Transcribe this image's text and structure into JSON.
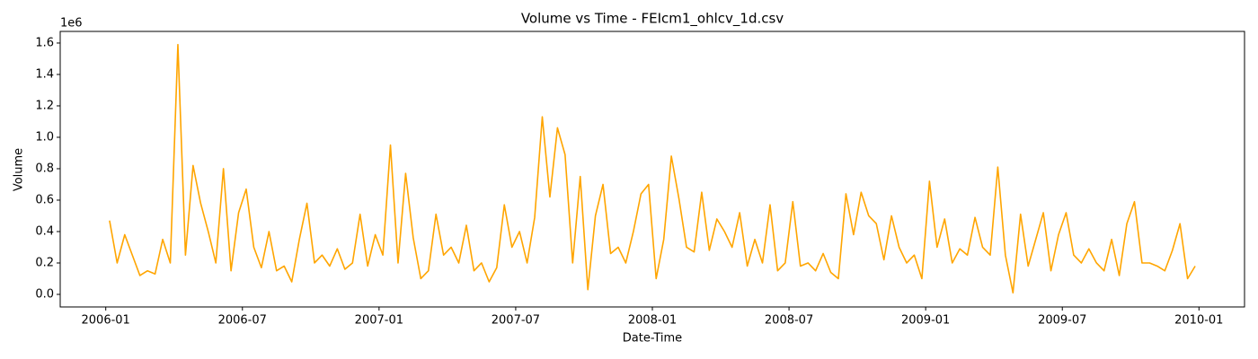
{
  "chart_data": {
    "type": "line",
    "title": "Volume vs Time - FEIcm1_ohlcv_1d.csv",
    "x_label": "Date-Time",
    "y_label": "Volume",
    "y_offset_label": "1e6",
    "x": [
      "2006-01",
      "2006-01",
      "2006-01",
      "2006-02",
      "2006-02",
      "2006-02",
      "2006-03",
      "2006-03",
      "2006-03",
      "2006-04",
      "2006-04",
      "2006-04",
      "2006-05",
      "2006-05",
      "2006-05",
      "2006-06",
      "2006-06",
      "2006-06",
      "2006-07",
      "2006-07",
      "2006-07",
      "2006-08",
      "2006-08",
      "2006-08",
      "2006-09",
      "2006-09",
      "2006-09",
      "2006-10",
      "2006-10",
      "2006-10",
      "2006-11",
      "2006-11",
      "2006-11",
      "2006-12",
      "2006-12",
      "2006-12",
      "2007-01",
      "2007-01",
      "2007-01",
      "2007-02",
      "2007-02",
      "2007-02",
      "2007-03",
      "2007-03",
      "2007-03",
      "2007-04",
      "2007-04",
      "2007-04",
      "2007-05",
      "2007-05",
      "2007-05",
      "2007-06",
      "2007-06",
      "2007-06",
      "2007-07",
      "2007-07",
      "2007-07",
      "2007-08",
      "2007-08",
      "2007-08",
      "2007-09",
      "2007-09",
      "2007-09",
      "2007-10",
      "2007-10",
      "2007-10",
      "2007-11",
      "2007-11",
      "2007-11",
      "2007-12",
      "2007-12",
      "2007-12",
      "2008-01",
      "2008-01",
      "2008-01",
      "2008-02",
      "2008-02",
      "2008-02",
      "2008-03",
      "2008-03",
      "2008-03",
      "2008-04",
      "2008-04",
      "2008-04",
      "2008-05",
      "2008-05",
      "2008-05",
      "2008-06",
      "2008-06",
      "2008-06",
      "2008-07",
      "2008-07",
      "2008-07",
      "2008-08",
      "2008-08",
      "2008-08",
      "2008-09",
      "2008-09",
      "2008-09",
      "2008-10",
      "2008-10",
      "2008-10",
      "2008-11",
      "2008-11",
      "2008-11",
      "2008-12",
      "2008-12",
      "2008-12",
      "2009-01",
      "2009-01",
      "2009-01",
      "2009-02",
      "2009-02",
      "2009-02",
      "2009-03",
      "2009-03",
      "2009-03",
      "2009-04",
      "2009-04",
      "2009-04",
      "2009-05",
      "2009-05",
      "2009-05",
      "2009-06",
      "2009-06",
      "2009-06",
      "2009-07",
      "2009-07",
      "2009-07",
      "2009-08",
      "2009-08",
      "2009-08",
      "2009-09",
      "2009-09",
      "2009-09",
      "2009-10",
      "2009-10",
      "2009-10",
      "2009-11",
      "2009-11",
      "2009-11",
      "2009-12",
      "2009-12",
      "2009-12"
    ],
    "series": [
      {
        "name": "Volume",
        "color": "#ffa500",
        "values": [
          470000,
          200000,
          380000,
          250000,
          120000,
          150000,
          130000,
          350000,
          200000,
          1590000,
          250000,
          820000,
          580000,
          400000,
          200000,
          800000,
          150000,
          520000,
          670000,
          300000,
          170000,
          400000,
          150000,
          180000,
          80000,
          350000,
          580000,
          200000,
          250000,
          180000,
          290000,
          160000,
          200000,
          510000,
          180000,
          380000,
          250000,
          950000,
          200000,
          770000,
          360000,
          100000,
          150000,
          510000,
          250000,
          300000,
          200000,
          440000,
          150000,
          200000,
          80000,
          170000,
          570000,
          300000,
          400000,
          200000,
          490000,
          1130000,
          620000,
          1060000,
          890000,
          200000,
          750000,
          30000,
          500000,
          700000,
          260000,
          300000,
          200000,
          400000,
          640000,
          700000,
          100000,
          350000,
          880000,
          610000,
          300000,
          270000,
          650000,
          280000,
          480000,
          400000,
          300000,
          520000,
          180000,
          350000,
          200000,
          570000,
          150000,
          200000,
          590000,
          180000,
          200000,
          150000,
          260000,
          140000,
          100000,
          640000,
          380000,
          650000,
          500000,
          450000,
          220000,
          500000,
          300000,
          200000,
          250000,
          100000,
          720000,
          300000,
          480000,
          200000,
          290000,
          250000,
          490000,
          300000,
          250000,
          810000,
          250000,
          10000,
          510000,
          180000,
          350000,
          520000,
          150000,
          380000,
          520000,
          250000,
          200000,
          290000,
          200000,
          150000,
          350000,
          120000,
          450000,
          590000,
          200000,
          200000,
          180000,
          150000,
          280000,
          450000,
          100000,
          180000
        ]
      }
    ],
    "xlim": [
      "2005-11",
      "2010-03"
    ],
    "xticks": [
      "2006-01",
      "2006-07",
      "2007-01",
      "2007-07",
      "2008-01",
      "2008-07",
      "2009-01",
      "2009-07",
      "2010-01"
    ],
    "ylim": [
      -80000,
      1674000
    ],
    "yticks": [
      {
        "value": 0,
        "label": "0.0"
      },
      {
        "value": 200000,
        "label": "0.2"
      },
      {
        "value": 400000,
        "label": "0.4"
      },
      {
        "value": 600000,
        "label": "0.6"
      },
      {
        "value": 800000,
        "label": "0.8"
      },
      {
        "value": 1000000,
        "label": "1.0"
      },
      {
        "value": 1200000,
        "label": "1.2"
      },
      {
        "value": 1400000,
        "label": "1.4"
      },
      {
        "value": 1600000,
        "label": "1.6"
      }
    ],
    "grid": false
  }
}
